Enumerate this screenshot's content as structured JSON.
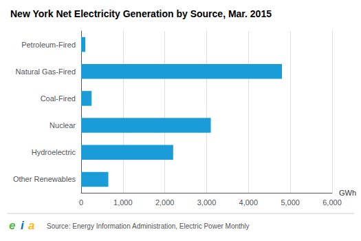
{
  "chart_data": {
    "type": "bar",
    "orientation": "horizontal",
    "title": "New York Net Electricity Generation by Source, Mar. 2015",
    "categories": [
      "Petroleum-Fired",
      "Natural Gas-Fired",
      "Coal-Fired",
      "Nuclear",
      "Hydroelectric",
      "Other Renewables"
    ],
    "values": [
      100,
      4800,
      250,
      3100,
      2200,
      650
    ],
    "color": "#1a9cd8",
    "xlabel": "GWh",
    "xlim": [
      0,
      6000
    ],
    "xticks": [
      0,
      {
        "value": 1000,
        "label": "1,000"
      },
      {
        "value": 2000,
        "label": "2,000"
      },
      {
        "value": 3000,
        "label": "3,000"
      },
      {
        "value": 4000,
        "label": "4,000"
      },
      {
        "value": 5000,
        "label": "5,000"
      },
      {
        "value": 6000,
        "label": "6,000"
      }
    ],
    "grid": true,
    "annotations": [
      {
        "text": "e",
        "color": "#4db848"
      },
      {
        "text": "i",
        "color": "#0072bc"
      },
      {
        "text": "a",
        "color": "#fdb913"
      },
      {
        "text": "Source: Energy Information Administration, Electric Power Monthly"
      }
    ]
  }
}
